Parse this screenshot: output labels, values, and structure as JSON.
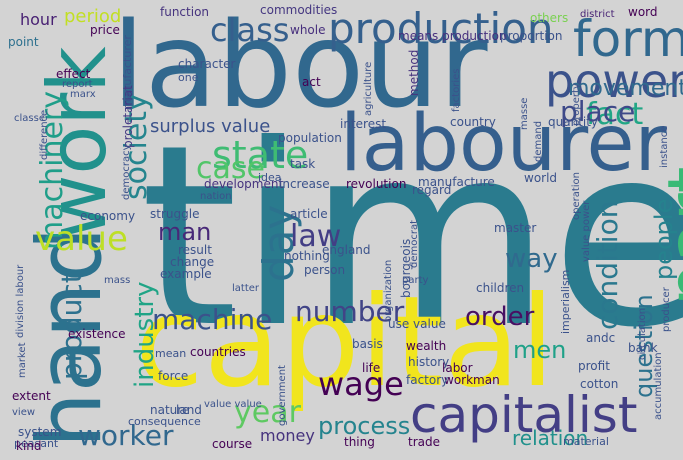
{
  "background_color": "#d3d3d3",
  "words": [
    {
      "text": "time",
      "color": "#2a7b8e"
    },
    {
      "text": "labour",
      "color": "#31688e"
    },
    {
      "text": "capital",
      "color": "#f1e51d"
    },
    {
      "text": "labourer",
      "color": "#355f8d"
    },
    {
      "text": "work",
      "color": "#21918c"
    },
    {
      "text": "hand",
      "color": "#2c728e"
    },
    {
      "text": "production",
      "color": "#35608d"
    },
    {
      "text": "power",
      "color": "#3b528b"
    },
    {
      "text": "form",
      "color": "#31688e"
    },
    {
      "text": "part",
      "color": "#3aba76"
    },
    {
      "text": "capitalist",
      "color": "#433e85"
    },
    {
      "text": "class",
      "color": "#355f8d"
    },
    {
      "text": "society",
      "color": "#25858e"
    },
    {
      "text": "state",
      "color": "#3fbc73"
    },
    {
      "text": "case",
      "color": "#52c569"
    },
    {
      "text": "fact",
      "color": "#21a685"
    },
    {
      "text": "place",
      "color": "#3e4989"
    },
    {
      "text": "movement",
      "color": "#306a8e"
    },
    {
      "text": "machinery",
      "color": "#1f9e89"
    },
    {
      "text": "value",
      "color": "#bddf26"
    },
    {
      "text": "day",
      "color": "#2c728e"
    },
    {
      "text": "surplus value",
      "color": "#3b528b"
    },
    {
      "text": "law",
      "color": "#433e85"
    },
    {
      "text": "man",
      "color": "#482878"
    },
    {
      "text": "condition",
      "color": "#2a788e"
    },
    {
      "text": "way",
      "color": "#306a8e"
    },
    {
      "text": "people",
      "color": "#26828e"
    },
    {
      "text": "product",
      "color": "#2d718e"
    },
    {
      "text": "industry",
      "color": "#20a486"
    },
    {
      "text": "machine",
      "color": "#3b528b"
    },
    {
      "text": "number",
      "color": "#414487"
    },
    {
      "text": "order",
      "color": "#471063"
    },
    {
      "text": "question",
      "color": "#2c728e"
    },
    {
      "text": "men",
      "color": "#1fa188"
    },
    {
      "text": "year",
      "color": "#5ec962"
    },
    {
      "text": "wage",
      "color": "#440154"
    },
    {
      "text": "process",
      "color": "#25848e"
    },
    {
      "text": "worker",
      "color": "#31688e"
    },
    {
      "text": "relation",
      "color": "#21918c"
    },
    {
      "text": "money",
      "color": "#46337e"
    },
    {
      "text": "hour",
      "color": "#482173"
    },
    {
      "text": "period",
      "color": "#c2df23"
    },
    {
      "text": "function",
      "color": "#46337e"
    },
    {
      "text": "commodities",
      "color": "#453781"
    },
    {
      "text": "whole",
      "color": "#472f7d"
    },
    {
      "text": "means production",
      "color": "#46307e"
    },
    {
      "text": "proportion",
      "color": "#3b528b"
    },
    {
      "text": "others",
      "color": "#7ad151"
    },
    {
      "text": "district",
      "color": "#482475"
    },
    {
      "text": "word",
      "color": "#440154"
    },
    {
      "text": "point",
      "color": "#2d708e"
    },
    {
      "text": "price",
      "color": "#440154"
    },
    {
      "text": "manufacturer",
      "color": "#3b528b"
    },
    {
      "text": "character",
      "color": "#3b528b"
    },
    {
      "text": "one",
      "color": "#3b528b"
    },
    {
      "text": "effect",
      "color": "#440154"
    },
    {
      "text": "report",
      "color": "#3b528b"
    },
    {
      "text": "marx",
      "color": "#3b528b"
    },
    {
      "text": "proletariat",
      "color": "#443a83"
    },
    {
      "text": "act",
      "color": "#440154"
    },
    {
      "text": "agriculture",
      "color": "#3b528b"
    },
    {
      "text": "method",
      "color": "#46337e"
    },
    {
      "text": "factories",
      "color": "#3b528b"
    },
    {
      "text": "property",
      "color": "#3b528b"
    },
    {
      "text": "classe",
      "color": "#3b528b"
    },
    {
      "text": "difference",
      "color": "#3b528b"
    },
    {
      "text": "democracy",
      "color": "#3b528b"
    },
    {
      "text": "population",
      "color": "#3b528b"
    },
    {
      "text": "interest",
      "color": "#3b528b"
    },
    {
      "text": "country",
      "color": "#3b528b"
    },
    {
      "text": "quantity",
      "color": "#3b528b"
    },
    {
      "text": "masse",
      "color": "#3b528b"
    },
    {
      "text": "task",
      "color": "#3b528b"
    },
    {
      "text": "demand",
      "color": "#3b528b"
    },
    {
      "text": "instance",
      "color": "#3b528b"
    },
    {
      "text": "development",
      "color": "#46337e"
    },
    {
      "text": "idea",
      "color": "#3b528b"
    },
    {
      "text": "increase",
      "color": "#3b528b"
    },
    {
      "text": "revolution",
      "color": "#440154"
    },
    {
      "text": "manufacture",
      "color": "#3b528b"
    },
    {
      "text": "world",
      "color": "#3b528b"
    },
    {
      "text": "nation",
      "color": "#3b528b"
    },
    {
      "text": "regard",
      "color": "#3b528b"
    },
    {
      "text": "economy",
      "color": "#3b528b"
    },
    {
      "text": "struggle",
      "color": "#3b528b"
    },
    {
      "text": "article",
      "color": "#3b528b"
    },
    {
      "text": "master",
      "color": "#3b528b"
    },
    {
      "text": "operation",
      "color": "#3b528b"
    },
    {
      "text": "value power",
      "color": "#3b528b"
    },
    {
      "text": "division labour",
      "color": "#3b528b"
    },
    {
      "text": "result",
      "color": "#3b528b"
    },
    {
      "text": "change",
      "color": "#3b528b"
    },
    {
      "text": "example",
      "color": "#3b528b"
    },
    {
      "text": "nothing",
      "color": "#3b528b"
    },
    {
      "text": "person",
      "color": "#3b528b"
    },
    {
      "text": "england",
      "color": "#3b528b"
    },
    {
      "text": "organization",
      "color": "#3b528b"
    },
    {
      "text": "democrat",
      "color": "#3b528b"
    },
    {
      "text": "mass",
      "color": "#3b528b"
    },
    {
      "text": "latter",
      "color": "#3b528b"
    },
    {
      "text": "party",
      "color": "#3b528b"
    },
    {
      "text": "bourgeois",
      "color": "#3b528b"
    },
    {
      "text": "children",
      "color": "#3b528b"
    },
    {
      "text": "imperialism",
      "color": "#3b528b"
    },
    {
      "text": "use value",
      "color": "#3b528b"
    },
    {
      "text": "andc",
      "color": "#3b528b"
    },
    {
      "text": "circulation",
      "color": "#3b528b"
    },
    {
      "text": "producer",
      "color": "#3b528b"
    },
    {
      "text": "existence",
      "color": "#440154"
    },
    {
      "text": "market",
      "color": "#3b528b"
    },
    {
      "text": "basis",
      "color": "#3b528b"
    },
    {
      "text": "wealth",
      "color": "#440154"
    },
    {
      "text": "mean",
      "color": "#3b528b"
    },
    {
      "text": "countries",
      "color": "#440154"
    },
    {
      "text": "history",
      "color": "#3b528b"
    },
    {
      "text": "labor",
      "color": "#440154"
    },
    {
      "text": "bank",
      "color": "#3b528b"
    },
    {
      "text": "force",
      "color": "#3b528b"
    },
    {
      "text": "life",
      "color": "#440154"
    },
    {
      "text": "workman",
      "color": "#440154"
    },
    {
      "text": "factory",
      "color": "#3b528b"
    },
    {
      "text": "profit",
      "color": "#3b528b"
    },
    {
      "text": "cotton",
      "color": "#3b528b"
    },
    {
      "text": "accumulation",
      "color": "#3b528b"
    },
    {
      "text": "extent",
      "color": "#440154"
    },
    {
      "text": "view",
      "color": "#3b528b"
    },
    {
      "text": "nature",
      "color": "#3b528b"
    },
    {
      "text": "land",
      "color": "#3b528b"
    },
    {
      "text": "value value",
      "color": "#3b528b"
    },
    {
      "text": "government",
      "color": "#3b528b"
    },
    {
      "text": "consequence",
      "color": "#3b528b"
    },
    {
      "text": "material",
      "color": "#3b528b"
    },
    {
      "text": "system",
      "color": "#3b528b"
    },
    {
      "text": "peasant",
      "color": "#3b528b"
    },
    {
      "text": "kind",
      "color": "#440154"
    },
    {
      "text": "course",
      "color": "#440154"
    },
    {
      "text": "thing",
      "color": "#440154"
    },
    {
      "text": "trade",
      "color": "#440154"
    }
  ]
}
